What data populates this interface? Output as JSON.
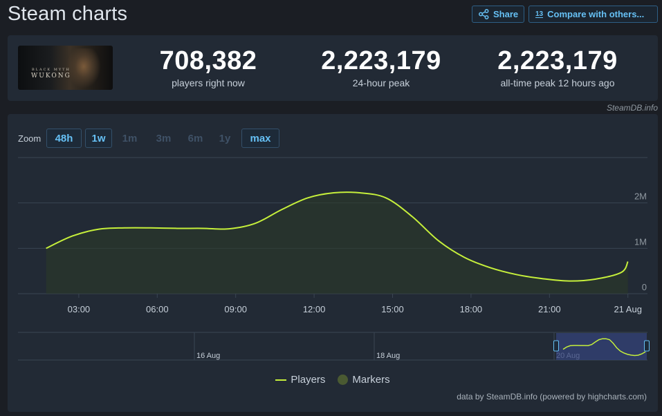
{
  "header": {
    "title": "Steam charts",
    "share_label": "Share",
    "compare_label": "Compare with others...",
    "compare_icon_text": "13"
  },
  "stats": {
    "thumbnail_text_small": "BLACK MYTH",
    "thumbnail_text_big": "WUKONG",
    "current_value": "708,382",
    "current_label": "players right now",
    "peak24_value": "2,223,179",
    "peak24_label": "24-hour peak",
    "alltime_value": "2,223,179",
    "alltime_label": "all-time peak 12 hours ago"
  },
  "watermark": "SteamDB.info",
  "zoom": {
    "label": "Zoom",
    "buttons": [
      {
        "label": "48h",
        "active": true
      },
      {
        "label": "1w",
        "active": true
      },
      {
        "label": "1m",
        "active": false
      },
      {
        "label": "3m",
        "active": false
      },
      {
        "label": "6m",
        "active": false
      },
      {
        "label": "1y",
        "active": false
      },
      {
        "label": "max",
        "active": true
      }
    ]
  },
  "chart_data": {
    "type": "area",
    "series": [
      {
        "name": "Players",
        "color": "#c6f03b",
        "x": [
          "01:45",
          "02:45",
          "03:45",
          "04:45",
          "05:45",
          "06:45",
          "07:45",
          "08:45",
          "09:45",
          "10:45",
          "11:45",
          "12:45",
          "13:45",
          "14:45",
          "15:45",
          "16:45",
          "17:45",
          "18:45",
          "19:45",
          "20:45",
          "21:45",
          "22:45",
          "23:45",
          "00:00"
        ],
        "values": [
          1000000,
          1270000,
          1420000,
          1450000,
          1450000,
          1440000,
          1440000,
          1430000,
          1550000,
          1850000,
          2110000,
          2223179,
          2223179,
          2110000,
          1700000,
          1170000,
          800000,
          570000,
          420000,
          330000,
          280000,
          320000,
          470000,
          708382
        ]
      }
    ],
    "x_tick_labels": [
      "03:00",
      "06:00",
      "09:00",
      "12:00",
      "15:00",
      "18:00",
      "21:00",
      "21 Aug"
    ],
    "y_tick_labels": [
      "0",
      "1M",
      "2M"
    ],
    "ylim": [
      0,
      3000000
    ],
    "grid": true,
    "legend": {
      "position": "bottom-center",
      "items": [
        "Players",
        "Markers"
      ]
    },
    "navigator": {
      "labels": [
        "16 Aug",
        "18 Aug",
        "20 Aug"
      ]
    },
    "credits": "data by SteamDB.info (powered by highcharts.com)"
  }
}
